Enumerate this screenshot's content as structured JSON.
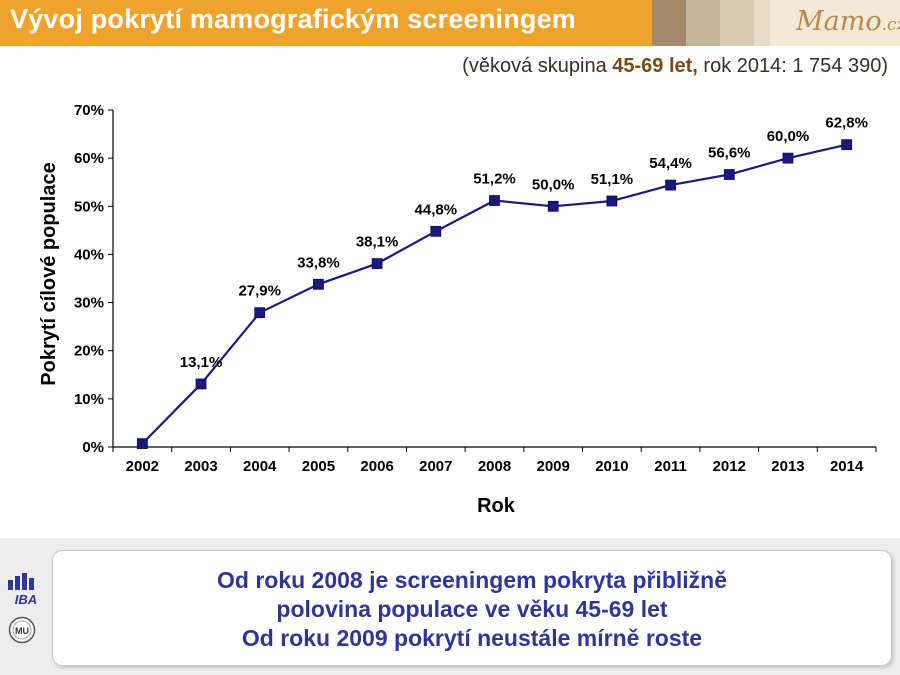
{
  "header": {
    "title": "Vývoj pokrytí mamografickým screeningem",
    "logo_text_main": "Mamo",
    "logo_text_suffix": ".cz",
    "subtitle_pre": "(věková skupina ",
    "subtitle_highlight": "45-69 let,",
    "subtitle_post": " rok 2014: 1 754 390)"
  },
  "colors": {
    "title_band": "#f0a32c",
    "series_line": "#1a1a7e",
    "marker": "#1a1a7e",
    "callout_text": "#2e3797"
  },
  "chart_data": {
    "type": "line",
    "title": "",
    "xlabel": "Rok",
    "ylabel": "Pokrytí cílové populace",
    "categories": [
      "2002",
      "2003",
      "2004",
      "2005",
      "2006",
      "2007",
      "2008",
      "2009",
      "2010",
      "2011",
      "2012",
      "2013",
      "2014"
    ],
    "series": [
      {
        "values": [
          0.7,
          13.1,
          27.9,
          33.8,
          38.1,
          44.8,
          51.2,
          50.0,
          51.1,
          54.4,
          56.6,
          60.0,
          62.8
        ],
        "labels": [
          "",
          "13,1%",
          "27,9%",
          "33,8%",
          "38,1%",
          "44,8%",
          "51,2%",
          "50,0%",
          "51,1%",
          "54,4%",
          "56,6%",
          "60,0%",
          "62,8%"
        ],
        "marker": "square"
      }
    ],
    "yticks": [
      "0%",
      "10%",
      "20%",
      "30%",
      "40%",
      "50%",
      "60%",
      "70%"
    ],
    "ylim": [
      0,
      70
    ],
    "grid": false,
    "legend": "none"
  },
  "callout": {
    "lines": [
      "Od roku 2008 je screeningem pokryta přibližně",
      "polovina populace ve věku 45-69 let",
      "Od roku 2009 pokrytí neustále mírně roste"
    ]
  },
  "footer_logos": {
    "iba_text": "IBA",
    "mu_text": "MU",
    "icon_names": [
      "iba-logo-icon",
      "masaryk-university-seal-icon"
    ]
  }
}
